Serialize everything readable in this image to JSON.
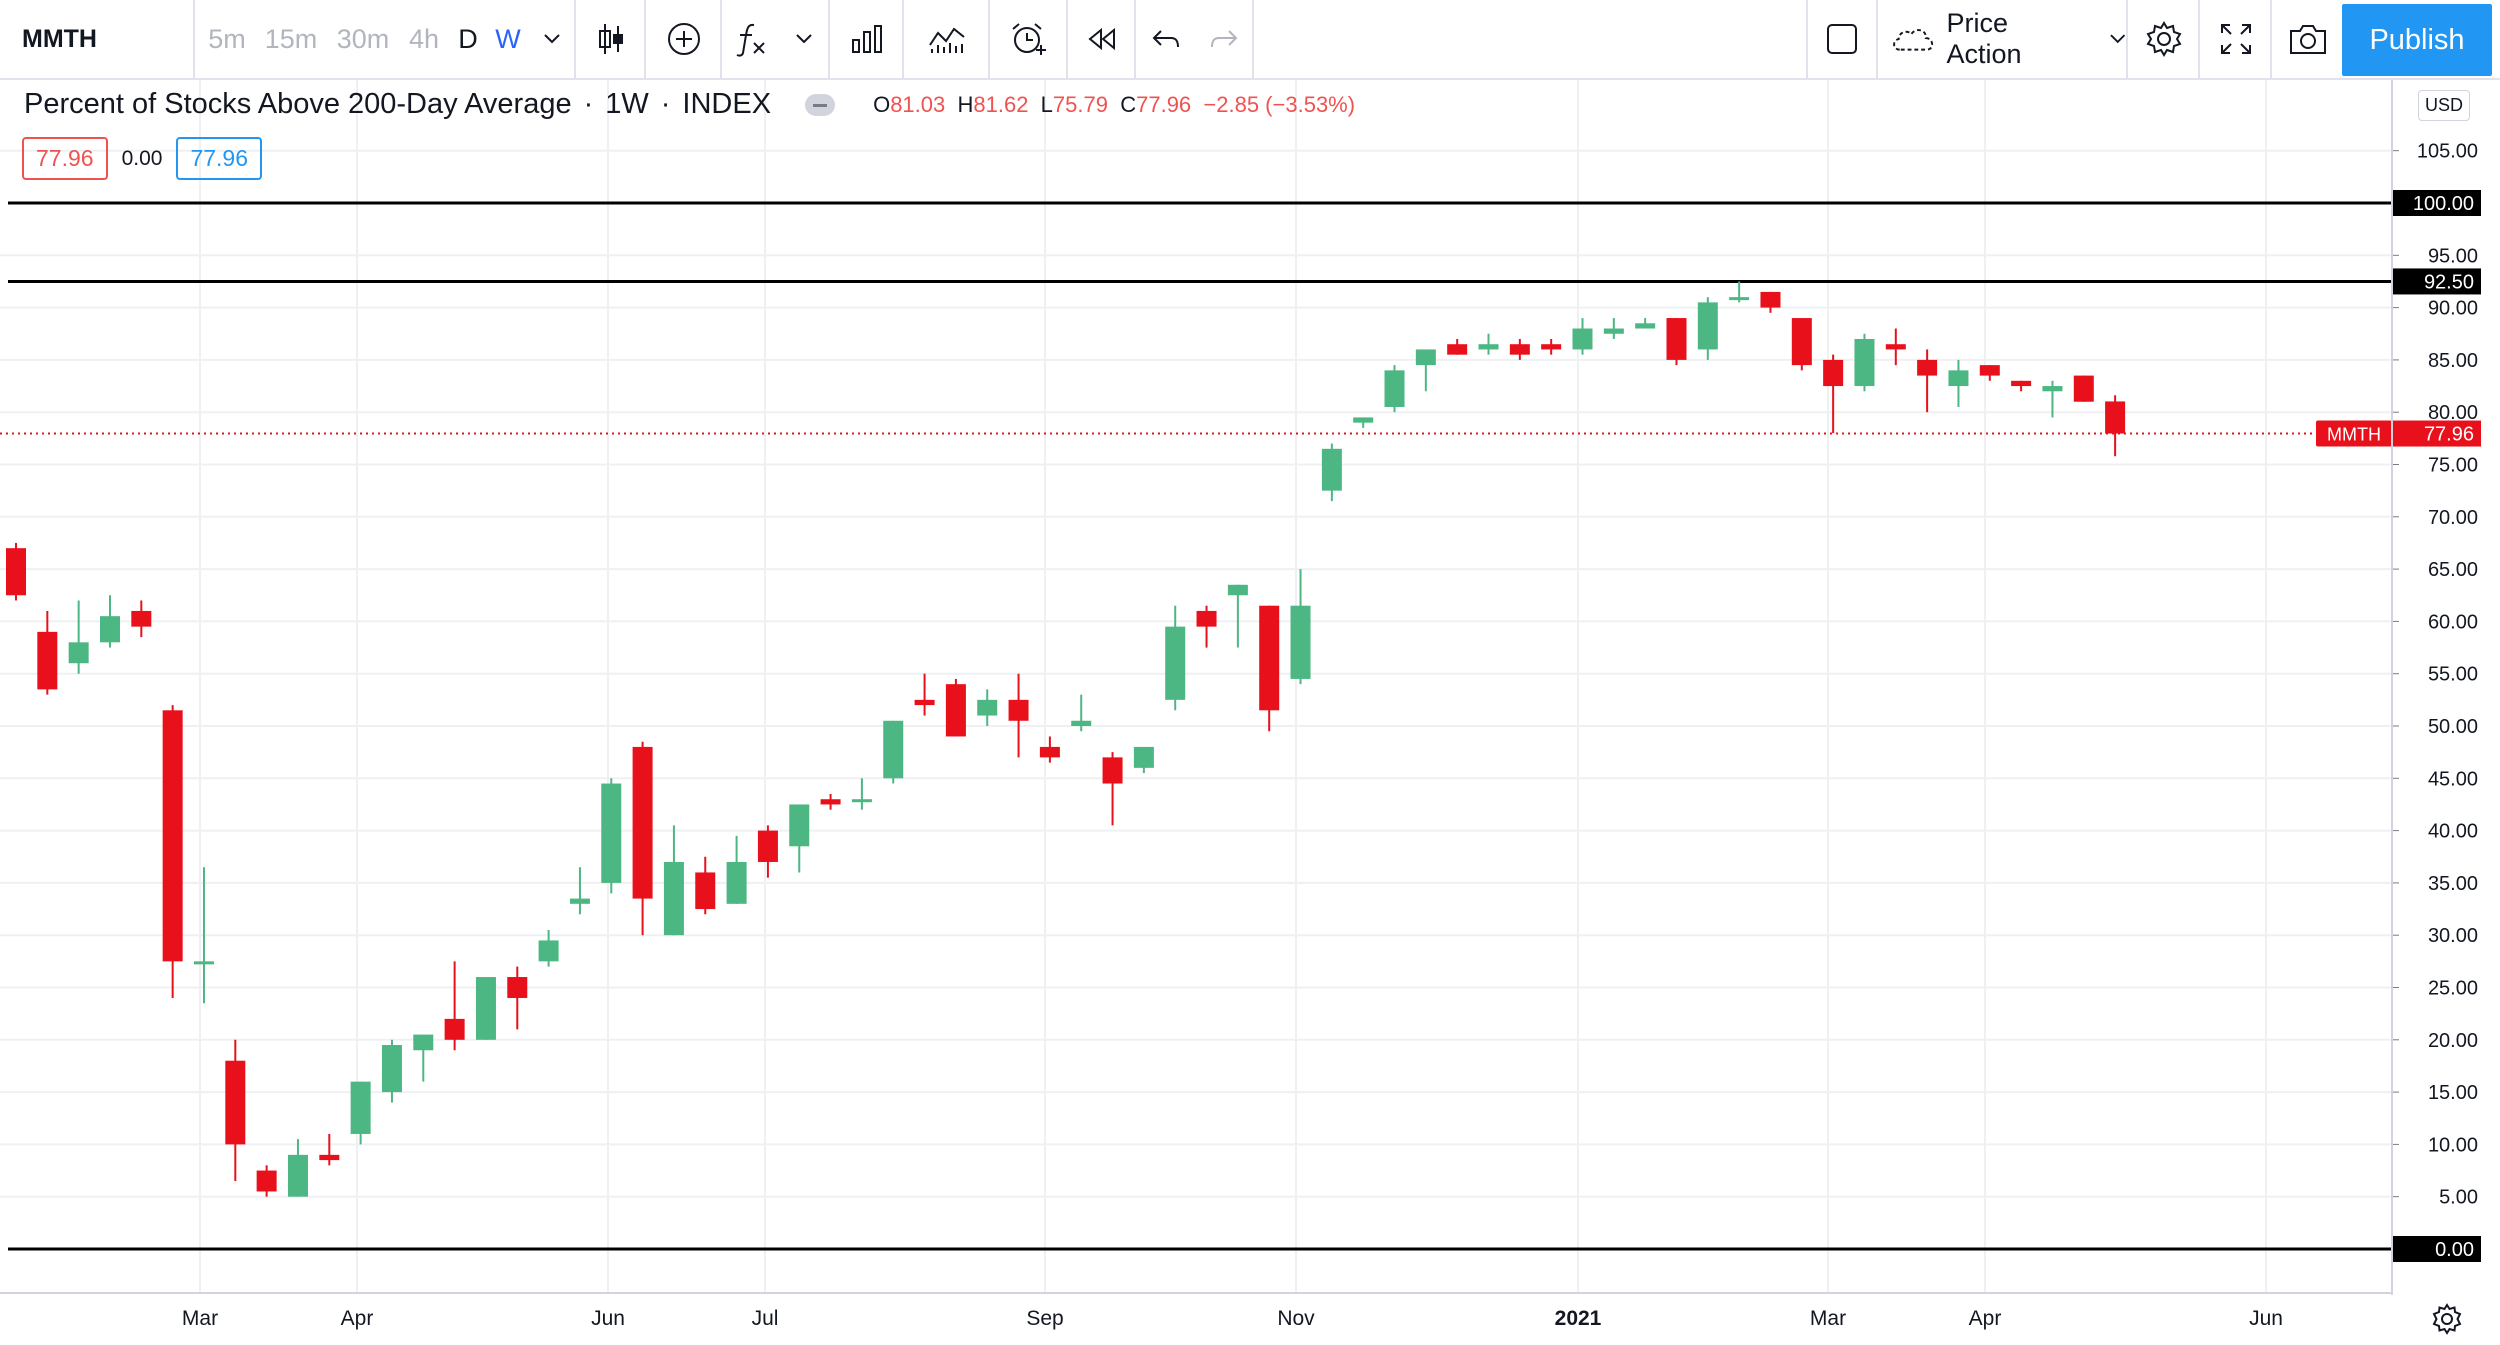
{
  "toolbar": {
    "symbol": "MMTH",
    "intervals": [
      "5m",
      "15m",
      "30m",
      "4h",
      "D",
      "W"
    ],
    "active_interval": "W",
    "template_name": "Price Action",
    "publish_label": "Publish"
  },
  "legend": {
    "title": "Percent of Stocks Above 200-Day Average",
    "interval": "1W",
    "exchange": "INDEX",
    "o_label": "O",
    "o": "81.03",
    "h_label": "H",
    "h": "81.62",
    "l_label": "L",
    "l": "75.79",
    "c_label": "C",
    "c": "77.96",
    "change": "−2.85 (−3.53%)",
    "value_left": "77.96",
    "value_mid": "0.00",
    "value_right": "77.96"
  },
  "price_scale": {
    "currency": "USD",
    "ticks": [
      "105.00",
      "95.00",
      "90.00",
      "85.00",
      "80.00",
      "75.00",
      "70.00",
      "65.00",
      "60.00",
      "55.00",
      "50.00",
      "45.00",
      "40.00",
      "35.00",
      "30.00",
      "25.00",
      "20.00",
      "15.00",
      "10.00",
      "5.00"
    ],
    "hlines": [
      {
        "label": "100.00",
        "value": 100
      },
      {
        "label": "92.50",
        "value": 92.5
      },
      {
        "label": "0.00",
        "value": 0
      }
    ],
    "last_price_symbol": "MMTH",
    "last_price": "77.96"
  },
  "time_scale": {
    "labels": [
      "Mar",
      "Apr",
      "Jun",
      "Jul",
      "Sep",
      "Nov",
      "2021",
      "Mar",
      "Apr",
      "Jun"
    ],
    "bold_label": "2021"
  },
  "colors": {
    "up": "#4cb782",
    "down": "#e8101b",
    "accent": "#2196f3",
    "last_price": "#e8101b",
    "hline": "#000000"
  },
  "chart_data": {
    "type": "candlestick",
    "symbol": "MMTH",
    "interval": "1W",
    "ylim": [
      -4,
      112
    ],
    "candles": [
      {
        "o": 67.0,
        "h": 67.5,
        "l": 62.0,
        "c": 62.5
      },
      {
        "o": 59.0,
        "h": 61.0,
        "l": 53.0,
        "c": 53.5
      },
      {
        "o": 56.0,
        "h": 62.0,
        "l": 55.0,
        "c": 58.0
      },
      {
        "o": 58.0,
        "h": 62.5,
        "l": 57.5,
        "c": 60.5
      },
      {
        "o": 61.0,
        "h": 62.0,
        "l": 58.5,
        "c": 59.5
      },
      {
        "o": 51.5,
        "h": 52.0,
        "l": 24.0,
        "c": 27.5
      },
      {
        "o": 27.5,
        "h": 36.5,
        "l": 23.5,
        "c": 27.5
      },
      {
        "o": 18.0,
        "h": 20.0,
        "l": 6.5,
        "c": 10.0
      },
      {
        "o": 7.5,
        "h": 8.0,
        "l": 5.0,
        "c": 5.5
      },
      {
        "o": 5.0,
        "h": 10.5,
        "l": 5.0,
        "c": 9.0
      },
      {
        "o": 9.0,
        "h": 11.0,
        "l": 8.0,
        "c": 8.5
      },
      {
        "o": 11.0,
        "h": 16.0,
        "l": 10.0,
        "c": 16.0
      },
      {
        "o": 15.0,
        "h": 20.0,
        "l": 14.0,
        "c": 19.5
      },
      {
        "o": 19.0,
        "h": 20.5,
        "l": 16.0,
        "c": 20.5
      },
      {
        "o": 22.0,
        "h": 27.5,
        "l": 19.0,
        "c": 20.0
      },
      {
        "o": 20.0,
        "h": 26.0,
        "l": 20.0,
        "c": 26.0
      },
      {
        "o": 26.0,
        "h": 27.0,
        "l": 21.0,
        "c": 24.0
      },
      {
        "o": 27.5,
        "h": 30.5,
        "l": 27.0,
        "c": 29.5
      },
      {
        "o": 33.0,
        "h": 36.5,
        "l": 32.0,
        "c": 33.5
      },
      {
        "o": 35.0,
        "h": 45.0,
        "l": 34.0,
        "c": 44.5
      },
      {
        "o": 48.0,
        "h": 48.5,
        "l": 30.0,
        "c": 33.5
      },
      {
        "o": 30.0,
        "h": 40.5,
        "l": 30.0,
        "c": 37.0
      },
      {
        "o": 36.0,
        "h": 37.5,
        "l": 32.0,
        "c": 32.5
      },
      {
        "o": 33.0,
        "h": 39.5,
        "l": 33.0,
        "c": 37.0
      },
      {
        "o": 40.0,
        "h": 40.5,
        "l": 35.5,
        "c": 37.0
      },
      {
        "o": 38.5,
        "h": 42.5,
        "l": 36.0,
        "c": 42.5
      },
      {
        "o": 43.0,
        "h": 43.5,
        "l": 42.0,
        "c": 42.5
      },
      {
        "o": 43.0,
        "h": 45.0,
        "l": 42.0,
        "c": 43.0
      },
      {
        "o": 45.0,
        "h": 50.5,
        "l": 44.5,
        "c": 50.5
      },
      {
        "o": 52.5,
        "h": 55.0,
        "l": 51.0,
        "c": 52.0
      },
      {
        "o": 54.0,
        "h": 54.5,
        "l": 49.0,
        "c": 49.0
      },
      {
        "o": 51.0,
        "h": 53.5,
        "l": 50.0,
        "c": 52.5
      },
      {
        "o": 52.5,
        "h": 55.0,
        "l": 47.0,
        "c": 50.5
      },
      {
        "o": 48.0,
        "h": 49.0,
        "l": 46.5,
        "c": 47.0
      },
      {
        "o": 50.0,
        "h": 53.0,
        "l": 49.5,
        "c": 50.5
      },
      {
        "o": 47.0,
        "h": 47.5,
        "l": 40.5,
        "c": 44.5
      },
      {
        "o": 46.0,
        "h": 48.0,
        "l": 45.5,
        "c": 48.0
      },
      {
        "o": 52.5,
        "h": 61.5,
        "l": 51.5,
        "c": 59.5
      },
      {
        "o": 61.0,
        "h": 61.5,
        "l": 57.5,
        "c": 59.5
      },
      {
        "o": 62.5,
        "h": 63.5,
        "l": 57.5,
        "c": 63.5
      },
      {
        "o": 61.5,
        "h": 61.5,
        "l": 49.5,
        "c": 51.5
      },
      {
        "o": 54.5,
        "h": 65.0,
        "l": 54.0,
        "c": 61.5
      },
      {
        "o": 72.5,
        "h": 77.0,
        "l": 71.5,
        "c": 76.5
      },
      {
        "o": 79.0,
        "h": 79.5,
        "l": 78.5,
        "c": 79.5
      },
      {
        "o": 80.5,
        "h": 84.5,
        "l": 80.0,
        "c": 84.0
      },
      {
        "o": 84.5,
        "h": 86.0,
        "l": 82.0,
        "c": 86.0
      },
      {
        "o": 86.5,
        "h": 87.0,
        "l": 85.5,
        "c": 85.5
      },
      {
        "o": 86.0,
        "h": 87.5,
        "l": 85.5,
        "c": 86.5
      },
      {
        "o": 86.5,
        "h": 87.0,
        "l": 85.0,
        "c": 85.5
      },
      {
        "o": 86.5,
        "h": 87.0,
        "l": 85.5,
        "c": 86.0
      },
      {
        "o": 86.0,
        "h": 89.0,
        "l": 85.5,
        "c": 88.0
      },
      {
        "o": 87.5,
        "h": 89.0,
        "l": 87.0,
        "c": 88.0
      },
      {
        "o": 88.0,
        "h": 89.0,
        "l": 88.0,
        "c": 88.5
      },
      {
        "o": 89.0,
        "h": 89.0,
        "l": 84.5,
        "c": 85.0
      },
      {
        "o": 86.0,
        "h": 91.0,
        "l": 85.0,
        "c": 90.5
      },
      {
        "o": 91.0,
        "h": 92.5,
        "l": 90.5,
        "c": 91.0
      },
      {
        "o": 91.5,
        "h": 91.5,
        "l": 89.5,
        "c": 90.0
      },
      {
        "o": 89.0,
        "h": 89.0,
        "l": 84.0,
        "c": 84.5
      },
      {
        "o": 85.0,
        "h": 85.5,
        "l": 78.0,
        "c": 82.5
      },
      {
        "o": 82.5,
        "h": 87.5,
        "l": 82.0,
        "c": 87.0
      },
      {
        "o": 86.5,
        "h": 88.0,
        "l": 84.5,
        "c": 86.0
      },
      {
        "o": 85.0,
        "h": 86.0,
        "l": 80.0,
        "c": 83.5
      },
      {
        "o": 82.5,
        "h": 85.0,
        "l": 80.5,
        "c": 84.0
      },
      {
        "o": 84.5,
        "h": 84.5,
        "l": 83.0,
        "c": 83.5
      },
      {
        "o": 83.0,
        "h": 83.0,
        "l": 82.0,
        "c": 82.5
      },
      {
        "o": 82.0,
        "h": 83.0,
        "l": 79.5,
        "c": 82.5
      },
      {
        "o": 83.5,
        "h": 83.5,
        "l": 81.0,
        "c": 81.0
      },
      {
        "o": 81.03,
        "h": 81.62,
        "l": 75.79,
        "c": 77.96
      }
    ]
  }
}
